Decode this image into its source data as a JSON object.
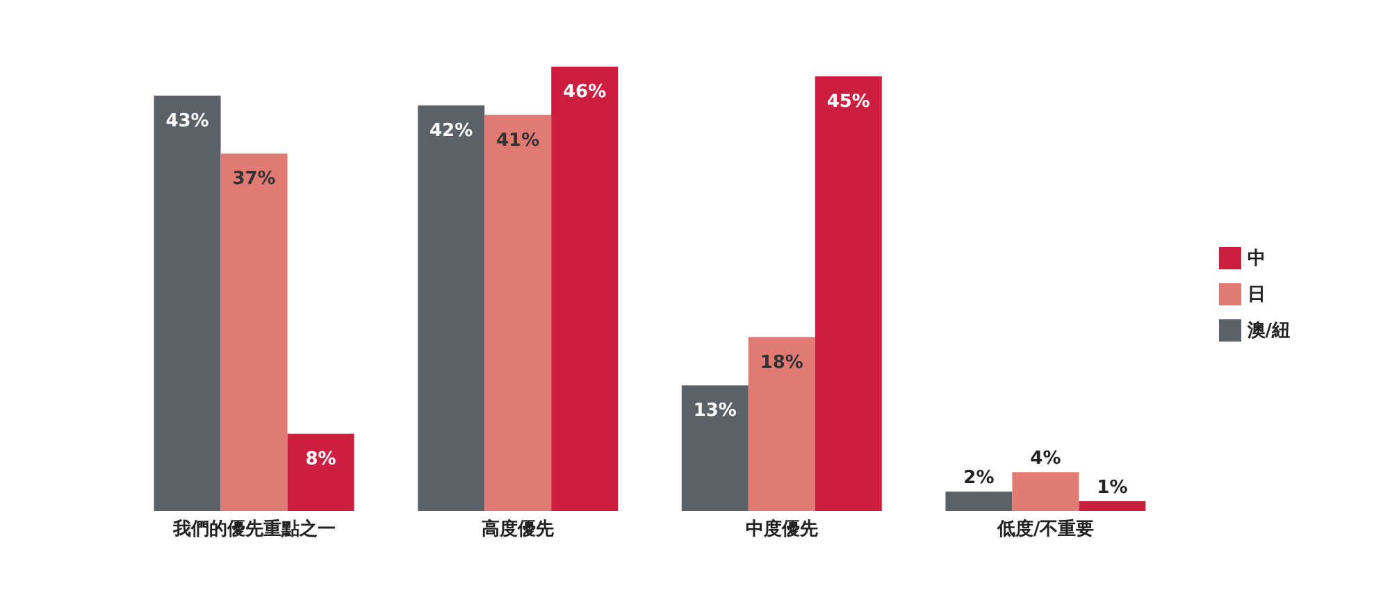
{
  "chart_data": {
    "type": "bar",
    "categories": [
      "我們的優先重點之一",
      "高度優先",
      "中度優先",
      "低度/不重要"
    ],
    "series": [
      {
        "name": "澳/紐",
        "color": "#5b6168",
        "values": [
          43,
          42,
          13,
          2
        ],
        "value_labels": [
          "43%",
          "42%",
          "13%",
          "2%"
        ]
      },
      {
        "name": "日",
        "color": "#e07a72",
        "values": [
          37,
          41,
          18,
          4
        ],
        "value_labels": [
          "37%",
          "41%",
          "18%",
          "4%"
        ]
      },
      {
        "name": "中",
        "color": "#cc1e3e",
        "values": [
          8,
          46,
          45,
          1
        ],
        "value_labels": [
          "8%",
          "46%",
          "45%",
          "1%"
        ]
      }
    ],
    "legend": "right",
    "grid": false
  }
}
